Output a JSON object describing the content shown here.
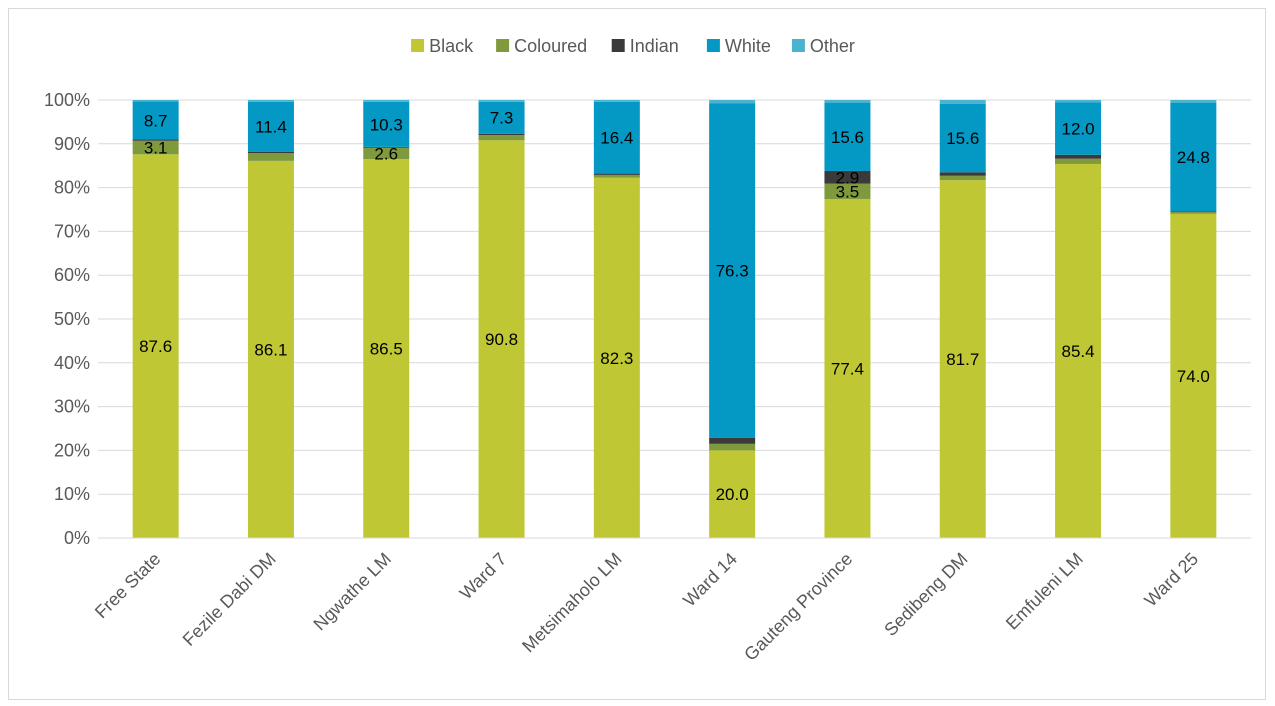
{
  "chart_data": {
    "type": "bar",
    "stacked": true,
    "percent_axis": true,
    "categories": [
      "Free State",
      "Fezile Dabi DM",
      "Ngwathe LM",
      "Ward 7",
      "Metsimaholo LM",
      "Ward 14",
      "Gauteng Province",
      "Sedibeng DM",
      "Emfuleni LM",
      "Ward 25"
    ],
    "series": [
      {
        "name": "Black",
        "color": "#bfc834",
        "values": [
          87.6,
          86.1,
          86.5,
          90.8,
          82.3,
          20.0,
          77.4,
          81.7,
          85.4,
          74.0
        ],
        "labels": [
          "87.6",
          "86.1",
          "86.5",
          "90.8",
          "82.3",
          "20.0",
          "77.4",
          "81.7",
          "85.4",
          "74.0"
        ]
      },
      {
        "name": "Coloured",
        "color": "#7f9a3c",
        "values": [
          3.1,
          1.8,
          2.6,
          1.2,
          0.6,
          1.5,
          3.5,
          1.0,
          1.2,
          0.4
        ],
        "labels": [
          "3.1",
          "",
          "2.6",
          "",
          "",
          "",
          "3.5",
          "",
          "",
          ""
        ]
      },
      {
        "name": "Indian",
        "color": "#3a3a3a",
        "values": [
          0.3,
          0.3,
          0.2,
          0.3,
          0.3,
          1.4,
          2.9,
          0.8,
          0.9,
          0.2
        ],
        "labels": [
          "",
          "",
          "",
          "",
          "",
          "",
          "2.9",
          "",
          "",
          ""
        ]
      },
      {
        "name": "White",
        "color": "#0499c4",
        "values": [
          8.7,
          11.4,
          10.3,
          7.3,
          16.4,
          76.3,
          15.6,
          15.6,
          12.0,
          24.8
        ],
        "labels": [
          "8.7",
          "11.4",
          "10.3",
          "7.3",
          "16.4",
          "76.3",
          "15.6",
          "15.6",
          "12.0",
          "24.8"
        ]
      },
      {
        "name": "Other",
        "color": "#4ab3d0",
        "values": [
          0.3,
          0.4,
          0.4,
          0.4,
          0.4,
          0.8,
          0.6,
          0.9,
          0.5,
          0.6
        ],
        "labels": [
          "",
          "",
          "",
          "",
          "",
          "",
          "",
          "",
          "",
          ""
        ]
      }
    ],
    "ylim": [
      0,
      100
    ],
    "yticks": [
      "0%",
      "10%",
      "20%",
      "30%",
      "40%",
      "50%",
      "60%",
      "70%",
      "80%",
      "90%",
      "100%"
    ],
    "grid": true,
    "legend_position": "top-center",
    "title": "",
    "xlabel": "",
    "ylabel": ""
  }
}
